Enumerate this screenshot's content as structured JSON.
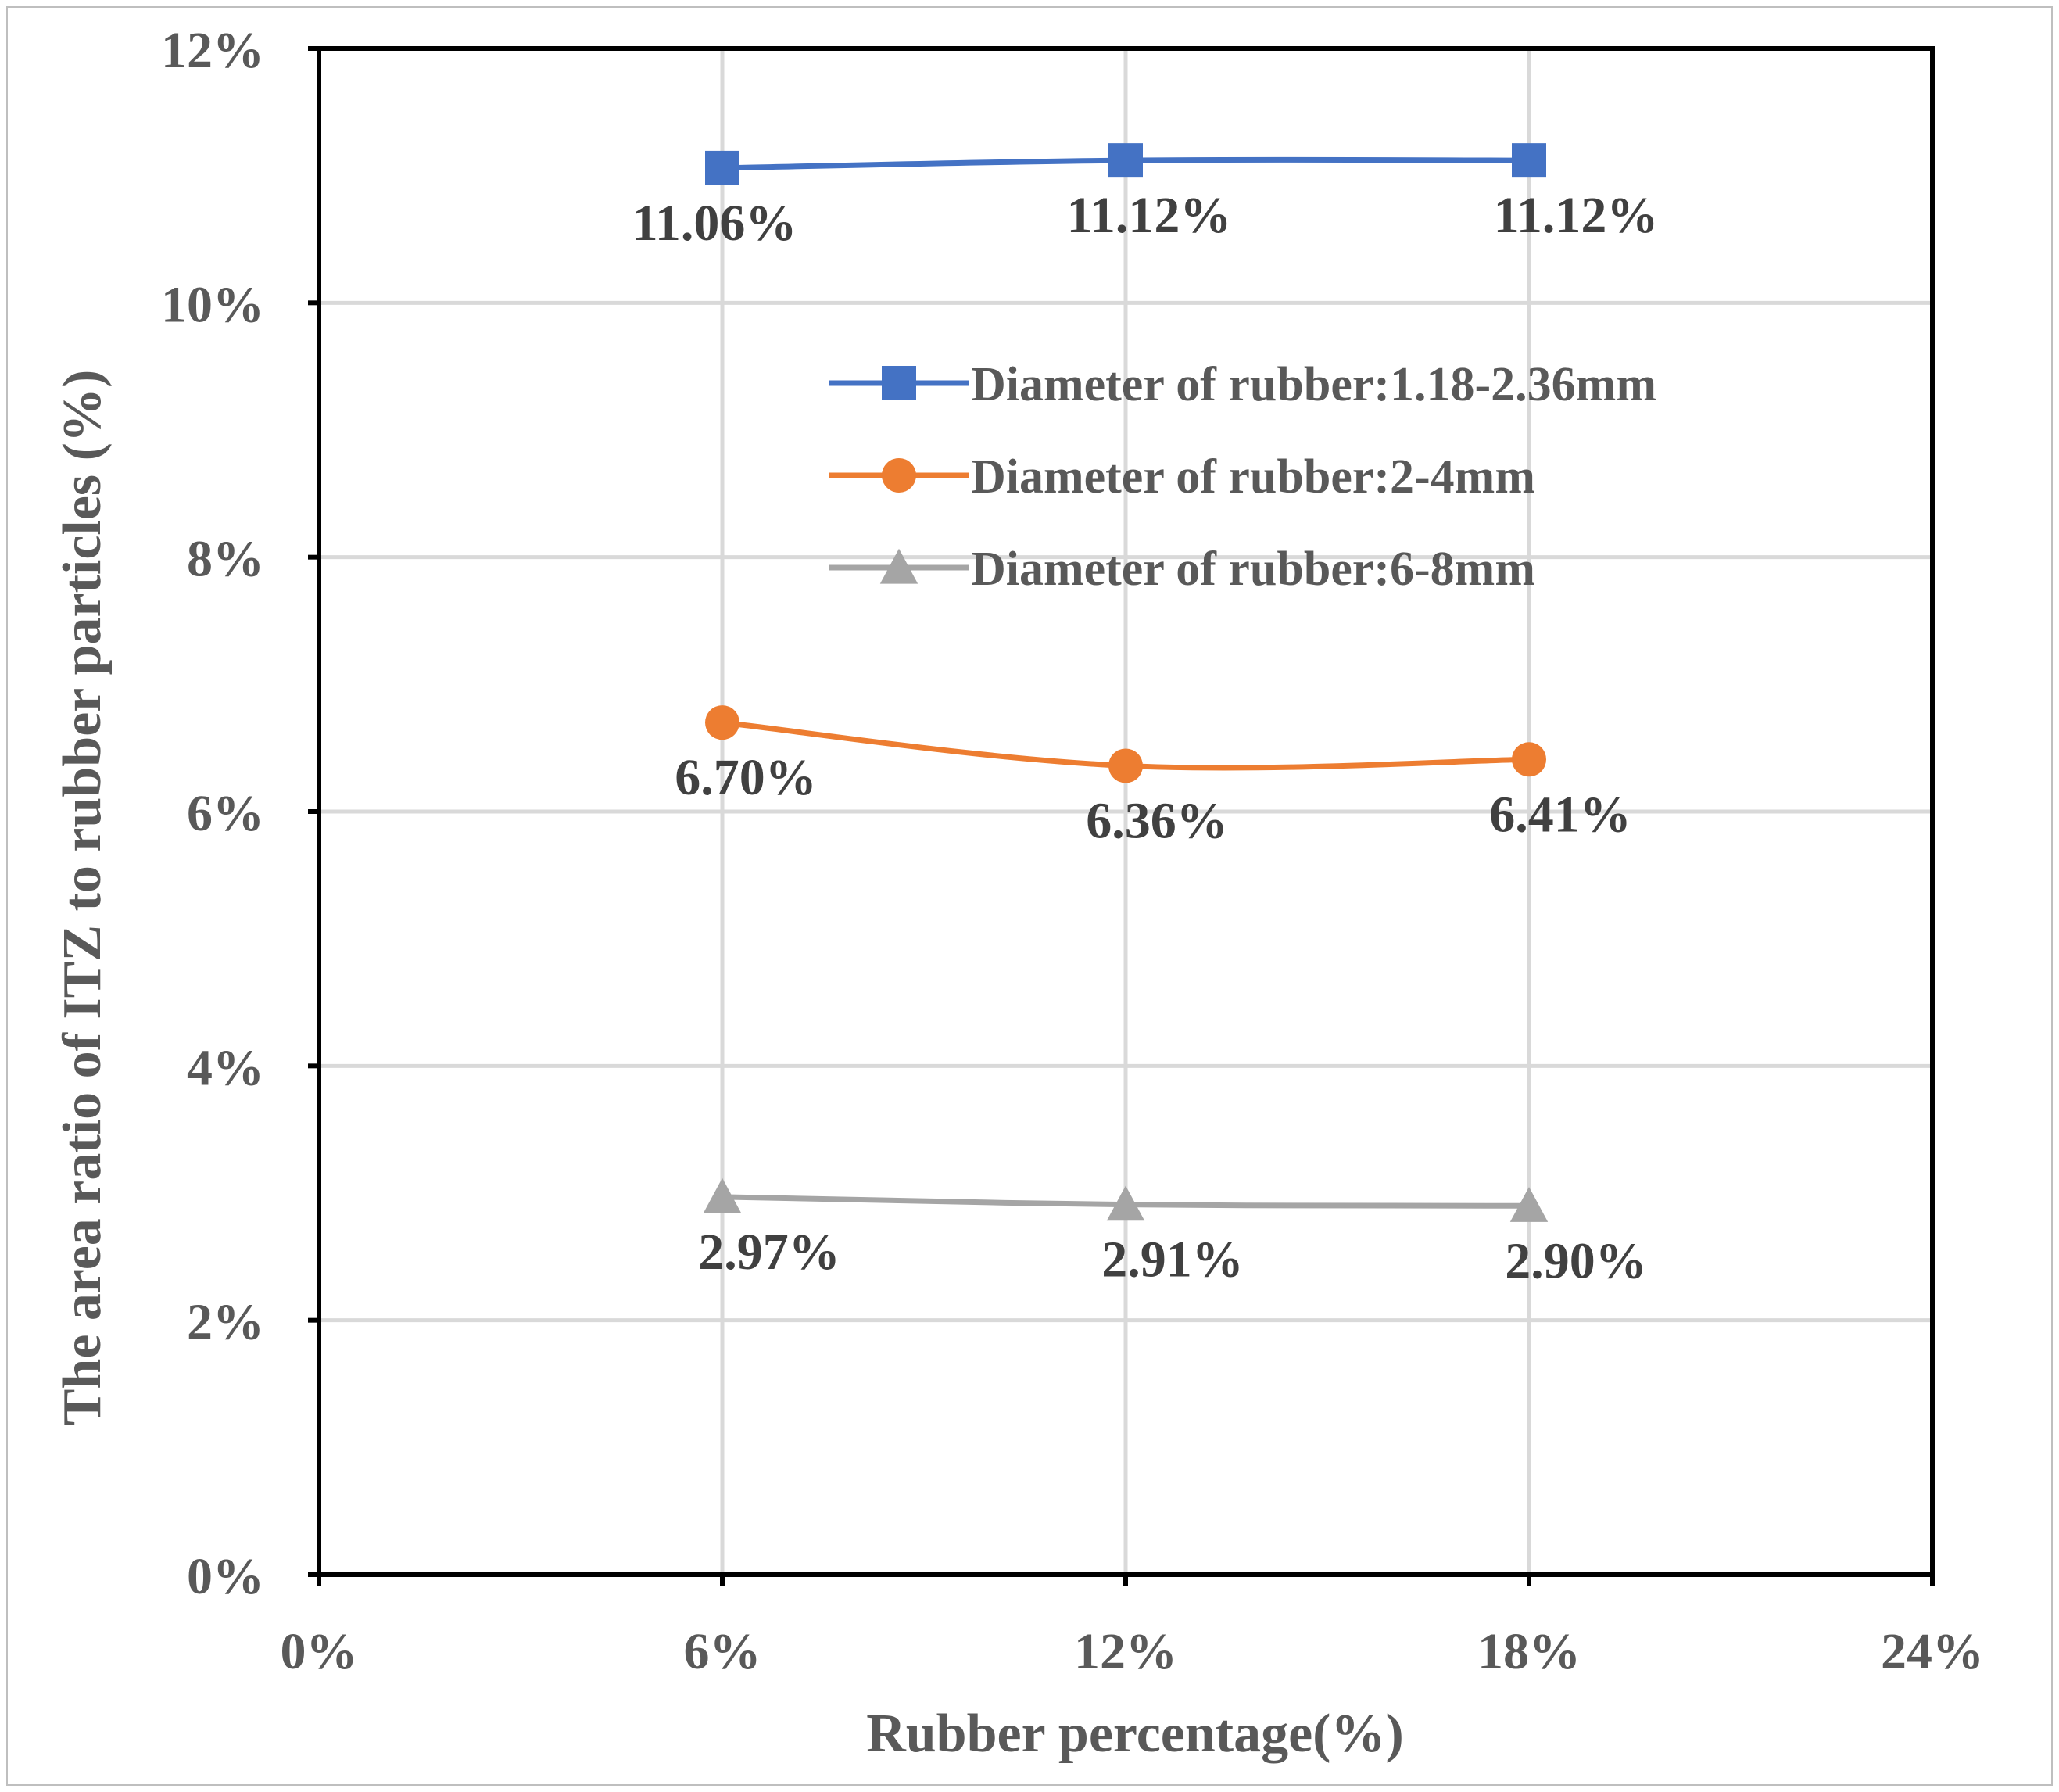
{
  "chart_data": {
    "type": "line",
    "title": "",
    "xlabel": "Rubber percentage(%)",
    "ylabel": "The area ratio of ITZ  to rubber particles (%)",
    "xlim": [
      0,
      24
    ],
    "ylim": [
      0,
      12
    ],
    "x_ticks": [
      0,
      6,
      12,
      18,
      24
    ],
    "x_tick_labels": [
      "0%",
      "6%",
      "12%",
      "18%",
      "24%"
    ],
    "y_ticks": [
      0,
      2,
      4,
      6,
      8,
      10,
      12
    ],
    "y_tick_labels": [
      "0%",
      "2%",
      "4%",
      "6%",
      "8%",
      "10%",
      "12%"
    ],
    "grid": true,
    "legend_position": "upper-right-inside",
    "x": [
      6,
      12,
      18
    ],
    "series": [
      {
        "name": "Diameter of rubber:1.18-2.36mm",
        "marker": "square",
        "color": "#4472C4",
        "values": [
          11.06,
          11.12,
          11.12
        ],
        "labels": [
          "11.06%",
          "11.12%",
          "11.12%"
        ]
      },
      {
        "name": "Diameter of rubber:2-4mm",
        "marker": "circle",
        "color": "#ED7D31",
        "values": [
          6.7,
          6.36,
          6.41
        ],
        "labels": [
          "6.70%",
          "6.36%",
          "6.41%"
        ]
      },
      {
        "name": "Diameter of rubber:6-8mm",
        "marker": "triangle",
        "color": "#A5A5A5",
        "values": [
          2.97,
          2.91,
          2.9
        ],
        "labels": [
          "2.97%",
          "2.91%",
          "2.90%"
        ]
      }
    ]
  }
}
